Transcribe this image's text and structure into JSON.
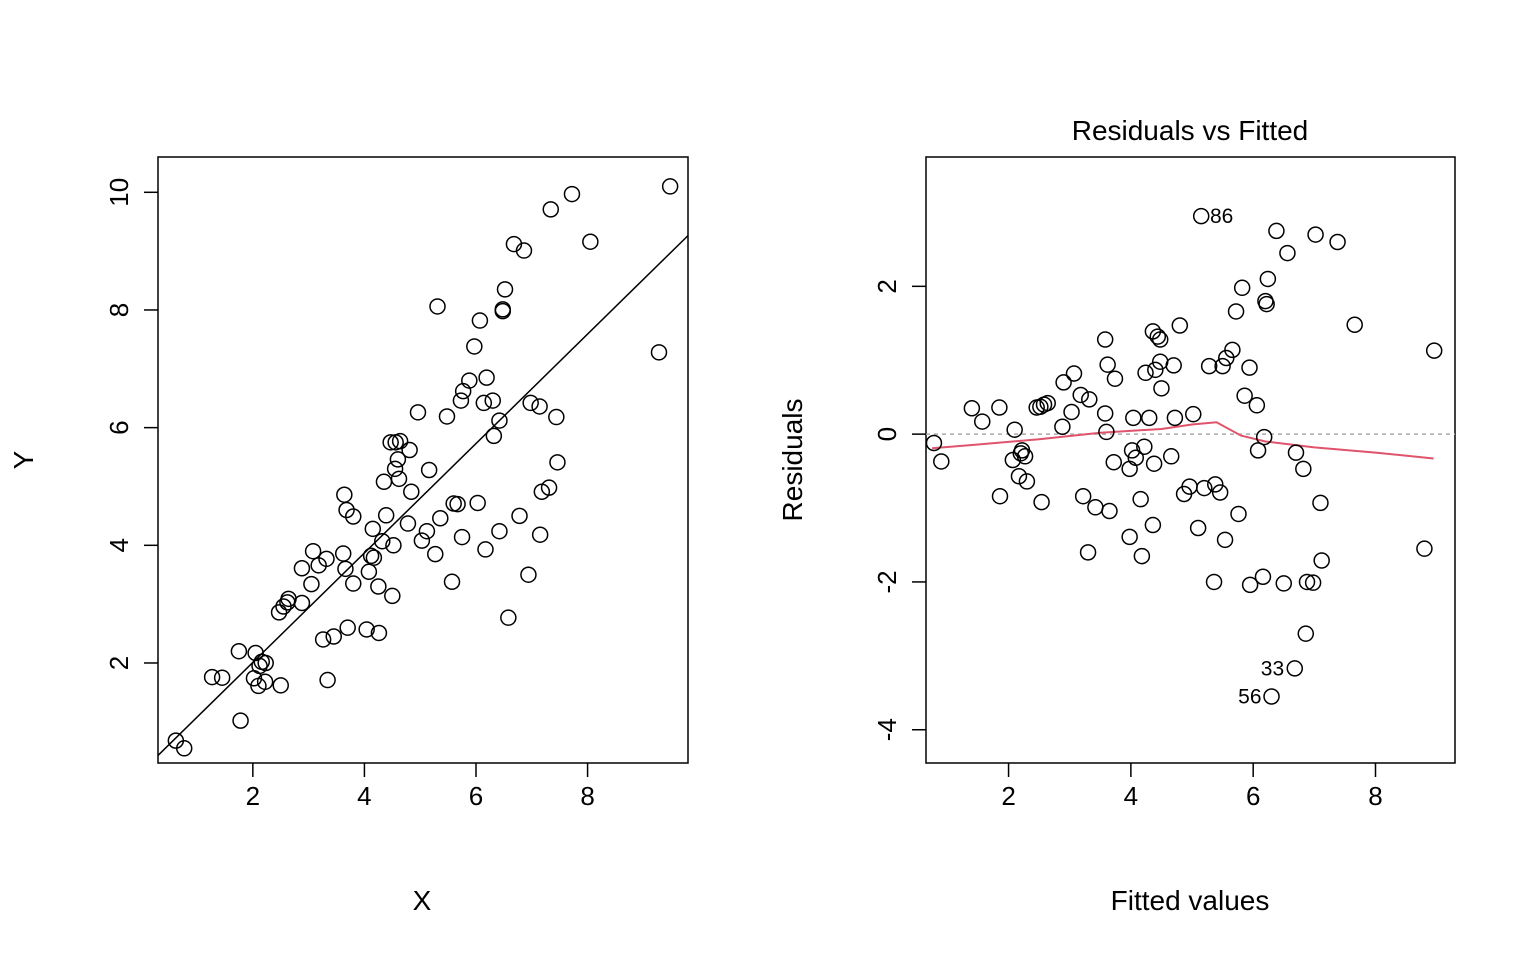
{
  "chart_data": [
    {
      "type": "scatter",
      "title": "",
      "xlabel": "X",
      "ylabel": "Y",
      "xlim": [
        0.3,
        9.8
      ],
      "ylim": [
        0.3,
        10.6
      ],
      "x_ticks": [
        2,
        4,
        6,
        8
      ],
      "y_ticks": [
        2,
        4,
        6,
        8,
        10
      ],
      "grid": false,
      "fit_line": {
        "intercept": 0.15,
        "slope": 0.93
      },
      "points": [
        [
          0.62,
          0.68
        ],
        [
          0.77,
          0.55
        ],
        [
          1.27,
          1.76
        ],
        [
          1.45,
          1.75
        ],
        [
          1.75,
          2.2
        ],
        [
          1.78,
          1.02
        ],
        [
          2.02,
          1.74
        ],
        [
          2.05,
          2.17
        ],
        [
          2.1,
          1.61
        ],
        [
          2.12,
          1.95
        ],
        [
          2.16,
          2.02
        ],
        [
          2.22,
          1.68
        ],
        [
          2.23,
          2.0
        ],
        [
          2.5,
          1.62
        ],
        [
          2.47,
          2.86
        ],
        [
          2.55,
          2.96
        ],
        [
          2.62,
          3.03
        ],
        [
          2.64,
          3.09
        ],
        [
          2.88,
          3.02
        ],
        [
          2.88,
          3.61
        ],
        [
          3.05,
          3.34
        ],
        [
          3.08,
          3.9
        ],
        [
          3.18,
          3.66
        ],
        [
          3.26,
          2.4
        ],
        [
          3.32,
          3.77
        ],
        [
          3.34,
          1.71
        ],
        [
          3.45,
          2.45
        ],
        [
          3.62,
          3.86
        ],
        [
          3.64,
          4.86
        ],
        [
          3.66,
          3.6
        ],
        [
          3.68,
          4.6
        ],
        [
          3.7,
          2.6
        ],
        [
          3.8,
          3.35
        ],
        [
          3.8,
          4.49
        ],
        [
          4.04,
          2.57
        ],
        [
          4.08,
          3.55
        ],
        [
          4.12,
          3.82
        ],
        [
          4.15,
          4.28
        ],
        [
          4.17,
          3.79
        ],
        [
          4.25,
          3.3
        ],
        [
          4.26,
          2.51
        ],
        [
          4.32,
          4.07
        ],
        [
          4.35,
          5.08
        ],
        [
          4.39,
          4.51
        ],
        [
          4.47,
          5.75
        ],
        [
          4.5,
          3.14
        ],
        [
          4.52,
          4.0
        ],
        [
          4.55,
          5.3
        ],
        [
          4.56,
          5.75
        ],
        [
          4.6,
          5.46
        ],
        [
          4.62,
          5.13
        ],
        [
          4.64,
          5.77
        ],
        [
          4.78,
          4.37
        ],
        [
          4.81,
          5.62
        ],
        [
          4.84,
          4.91
        ],
        [
          4.96,
          6.26
        ],
        [
          5.03,
          4.08
        ],
        [
          5.12,
          4.24
        ],
        [
          5.16,
          5.28
        ],
        [
          5.27,
          3.85
        ],
        [
          5.31,
          8.06
        ],
        [
          5.36,
          4.46
        ],
        [
          5.48,
          6.19
        ],
        [
          5.57,
          3.38
        ],
        [
          5.6,
          4.71
        ],
        [
          5.67,
          4.7
        ],
        [
          5.73,
          6.46
        ],
        [
          5.75,
          4.14
        ],
        [
          5.77,
          6.62
        ],
        [
          5.88,
          6.8
        ],
        [
          5.97,
          7.38
        ],
        [
          6.03,
          4.72
        ],
        [
          6.07,
          7.82
        ],
        [
          6.14,
          6.42
        ],
        [
          6.17,
          3.93
        ],
        [
          6.19,
          6.85
        ],
        [
          6.3,
          6.46
        ],
        [
          6.32,
          5.86
        ],
        [
          6.42,
          4.24
        ],
        [
          6.42,
          6.12
        ],
        [
          6.48,
          7.98
        ],
        [
          6.48,
          8.01
        ],
        [
          6.52,
          8.35
        ],
        [
          6.58,
          2.77
        ],
        [
          6.68,
          9.12
        ],
        [
          6.78,
          4.5
        ],
        [
          6.86,
          9.01
        ],
        [
          6.94,
          3.5
        ],
        [
          6.98,
          6.42
        ],
        [
          7.14,
          6.36
        ],
        [
          7.15,
          4.18
        ],
        [
          7.18,
          4.91
        ],
        [
          7.31,
          4.98
        ],
        [
          7.34,
          9.71
        ],
        [
          7.44,
          6.18
        ],
        [
          7.46,
          5.41
        ],
        [
          7.72,
          9.97
        ],
        [
          8.05,
          9.16
        ],
        [
          9.28,
          7.28
        ],
        [
          9.48,
          10.1
        ]
      ]
    },
    {
      "type": "scatter",
      "title": "Residuals vs Fitted",
      "xlabel": "Fitted values",
      "ylabel": "Residuals",
      "xlim": [
        0.65,
        9.3
      ],
      "ylim": [
        -4.45,
        3.75
      ],
      "x_ticks": [
        2,
        4,
        6,
        8
      ],
      "y_ticks": [
        -4,
        -2,
        0,
        2
      ],
      "grid": false,
      "reference_line": {
        "y": 0,
        "style": "dotted",
        "color": "#aaaaaa"
      },
      "smoother": {
        "color": "#DF536B",
        "x": [
          0.75,
          1.5,
          2.5,
          3.5,
          4.5,
          5.0,
          5.4,
          5.8,
          6.2,
          7.0,
          8.0,
          8.95
        ],
        "y": [
          -0.19,
          -0.14,
          -0.07,
          0.02,
          0.07,
          0.13,
          0.16,
          -0.02,
          -0.1,
          -0.18,
          -0.25,
          -0.33
        ]
      },
      "labels": [
        {
          "text": "86",
          "x": 5.13,
          "y": 2.95
        },
        {
          "text": "33",
          "x": 6.67,
          "y": -3.17
        },
        {
          "text": "56",
          "x": 6.3,
          "y": -3.55
        }
      ],
      "points": [
        [
          0.78,
          -0.12
        ],
        [
          0.9,
          -0.37
        ],
        [
          1.4,
          0.35
        ],
        [
          1.57,
          0.17
        ],
        [
          1.85,
          0.36
        ],
        [
          1.86,
          -0.84
        ],
        [
          2.07,
          -0.35
        ],
        [
          2.1,
          0.06
        ],
        [
          2.17,
          -0.57
        ],
        [
          2.2,
          -0.26
        ],
        [
          2.22,
          -0.22
        ],
        [
          2.27,
          -0.3
        ],
        [
          2.3,
          -0.64
        ],
        [
          2.46,
          0.36
        ],
        [
          2.52,
          0.37
        ],
        [
          2.54,
          -0.92
        ],
        [
          2.58,
          0.4
        ],
        [
          2.64,
          0.42
        ],
        [
          2.88,
          0.1
        ],
        [
          2.9,
          0.7
        ],
        [
          3.03,
          0.3
        ],
        [
          3.07,
          0.82
        ],
        [
          3.18,
          0.53
        ],
        [
          3.22,
          -0.84
        ],
        [
          3.3,
          -1.6
        ],
        [
          3.32,
          0.47
        ],
        [
          3.42,
          -0.99
        ],
        [
          3.58,
          1.28
        ],
        [
          3.58,
          0.28
        ],
        [
          3.6,
          0.03
        ],
        [
          3.62,
          0.94
        ],
        [
          3.65,
          -1.04
        ],
        [
          3.72,
          -0.38
        ],
        [
          3.74,
          0.75
        ],
        [
          3.98,
          -1.39
        ],
        [
          3.98,
          -0.47
        ],
        [
          4.02,
          -0.22
        ],
        [
          4.04,
          0.22
        ],
        [
          4.08,
          -0.32
        ],
        [
          4.16,
          -0.88
        ],
        [
          4.18,
          -1.65
        ],
        [
          4.22,
          -0.17
        ],
        [
          4.24,
          0.83
        ],
        [
          4.3,
          0.22
        ],
        [
          4.36,
          1.39
        ],
        [
          4.36,
          -1.23
        ],
        [
          4.38,
          -0.4
        ],
        [
          4.4,
          0.87
        ],
        [
          4.44,
          1.32
        ],
        [
          4.48,
          1.28
        ],
        [
          4.48,
          0.98
        ],
        [
          4.5,
          0.62
        ],
        [
          4.66,
          -0.3
        ],
        [
          4.7,
          0.93
        ],
        [
          4.72,
          0.22
        ],
        [
          4.8,
          1.47
        ],
        [
          4.87,
          -0.81
        ],
        [
          4.96,
          -0.71
        ],
        [
          5.02,
          0.27
        ],
        [
          5.1,
          -1.27
        ],
        [
          5.15,
          2.95
        ],
        [
          5.2,
          -0.73
        ],
        [
          5.28,
          0.92
        ],
        [
          5.36,
          -2.0
        ],
        [
          5.38,
          -0.68
        ],
        [
          5.46,
          -0.79
        ],
        [
          5.5,
          0.92
        ],
        [
          5.54,
          -1.43
        ],
        [
          5.56,
          1.03
        ],
        [
          5.66,
          1.14
        ],
        [
          5.72,
          1.66
        ],
        [
          5.76,
          -1.08
        ],
        [
          5.82,
          1.98
        ],
        [
          5.86,
          0.52
        ],
        [
          5.94,
          0.9
        ],
        [
          5.95,
          -2.04
        ],
        [
          6.06,
          0.39
        ],
        [
          6.08,
          -0.22
        ],
        [
          6.16,
          -1.93
        ],
        [
          6.18,
          -0.04
        ],
        [
          6.2,
          1.8
        ],
        [
          6.22,
          1.76
        ],
        [
          6.24,
          2.1
        ],
        [
          6.3,
          -3.55
        ],
        [
          6.38,
          2.75
        ],
        [
          6.5,
          -2.02
        ],
        [
          6.56,
          2.45
        ],
        [
          6.68,
          -3.17
        ],
        [
          6.7,
          -0.25
        ],
        [
          6.82,
          -0.47
        ],
        [
          6.86,
          -2.7
        ],
        [
          6.88,
          -2.0
        ],
        [
          6.98,
          -2.01
        ],
        [
          7.02,
          2.7
        ],
        [
          7.1,
          -0.93
        ],
        [
          7.12,
          -1.71
        ],
        [
          7.38,
          2.6
        ],
        [
          7.66,
          1.48
        ],
        [
          8.8,
          -1.55
        ],
        [
          8.96,
          1.13
        ]
      ]
    }
  ]
}
